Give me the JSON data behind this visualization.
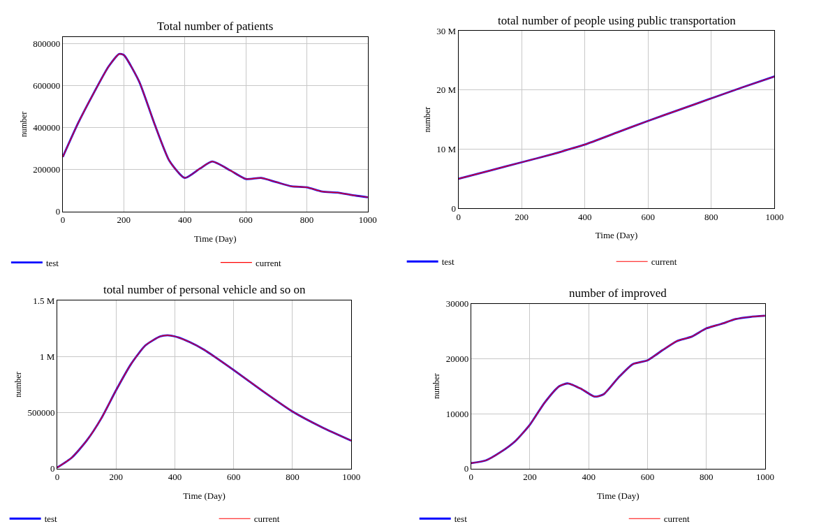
{
  "chart_data": [
    {
      "type": "line",
      "title": "Total number of patients",
      "xlabel": "Time (Day)",
      "ylabel": "number",
      "x": [
        0,
        50,
        100,
        150,
        185,
        200,
        250,
        300,
        350,
        400,
        450,
        490,
        550,
        600,
        650,
        700,
        750,
        800,
        850,
        900,
        950,
        1000
      ],
      "xlim": [
        0,
        1000
      ],
      "xticks": [
        0,
        200,
        400,
        600,
        800,
        1000
      ],
      "ylim": [
        0,
        830000
      ],
      "yticks": [
        0,
        200000,
        400000,
        600000,
        800000
      ],
      "grid": true,
      "legend": "bottom",
      "series": [
        {
          "name": "test",
          "color": "#0000ff",
          "values": [
            260000,
            420000,
            560000,
            690000,
            750000,
            745000,
            620000,
            420000,
            240000,
            160000,
            205000,
            238000,
            195000,
            155000,
            160000,
            140000,
            120000,
            115000,
            95000,
            90000,
            78000,
            68000
          ]
        },
        {
          "name": "current",
          "color": "#ff0000",
          "values": [
            260000,
            420000,
            560000,
            690000,
            750000,
            745000,
            620000,
            420000,
            240000,
            160000,
            205000,
            238000,
            195000,
            155000,
            160000,
            140000,
            120000,
            115000,
            95000,
            90000,
            78000,
            68000
          ]
        }
      ]
    },
    {
      "type": "line",
      "title": "total number of people using public transportation",
      "xlabel": "Time (Day)",
      "ylabel": "number",
      "x": [
        0,
        100,
        200,
        300,
        350,
        400,
        500,
        600,
        700,
        800,
        900,
        1000
      ],
      "xlim": [
        0,
        1000
      ],
      "xticks": [
        0,
        200,
        400,
        600,
        800,
        1000
      ],
      "ylim": [
        0,
        30000000
      ],
      "yticks": [
        0,
        {
          "value": 10000000,
          "label": "10 M"
        },
        {
          "value": 20000000,
          "label": "20 M"
        },
        {
          "value": 30000000,
          "label": "30 M"
        }
      ],
      "grid": true,
      "legend": "bottom",
      "series": [
        {
          "name": "test",
          "color": "#0000ff",
          "values": [
            5000000,
            6400000,
            7800000,
            9200000,
            10000000,
            10800000,
            12800000,
            14800000,
            16700000,
            18600000,
            20500000,
            22300000
          ]
        },
        {
          "name": "current",
          "color": "#ff0000",
          "values": [
            5000000,
            6400000,
            7800000,
            9200000,
            10000000,
            10800000,
            12800000,
            14800000,
            16700000,
            18600000,
            20500000,
            22300000
          ]
        }
      ]
    },
    {
      "type": "line",
      "title": "total number of personal vehicle and so on",
      "xlabel": "Time (Day)",
      "ylabel": "number",
      "x": [
        0,
        50,
        100,
        150,
        200,
        250,
        300,
        350,
        375,
        400,
        450,
        500,
        600,
        700,
        800,
        900,
        1000
      ],
      "xlim": [
        0,
        1000
      ],
      "xticks": [
        0,
        200,
        400,
        600,
        800,
        1000
      ],
      "ylim": [
        0,
        1500000
      ],
      "yticks": [
        0,
        500000,
        {
          "value": 1000000,
          "label": "1 M"
        },
        {
          "value": 1500000,
          "label": "1.5 M"
        }
      ],
      "grid": true,
      "legend": "bottom",
      "series": [
        {
          "name": "test",
          "color": "#0000ff",
          "values": [
            10000,
            100000,
            250000,
            450000,
            700000,
            930000,
            1100000,
            1180000,
            1190000,
            1180000,
            1130000,
            1060000,
            880000,
            690000,
            510000,
            370000,
            250000
          ]
        },
        {
          "name": "current",
          "color": "#ff0000",
          "values": [
            10000,
            100000,
            250000,
            450000,
            700000,
            930000,
            1100000,
            1180000,
            1190000,
            1180000,
            1130000,
            1060000,
            880000,
            690000,
            510000,
            370000,
            250000
          ]
        }
      ]
    },
    {
      "type": "line",
      "title": "number of improved",
      "xlabel": "Time (Day)",
      "ylabel": "number",
      "x": [
        0,
        50,
        100,
        150,
        200,
        250,
        300,
        330,
        375,
        420,
        450,
        500,
        550,
        600,
        650,
        700,
        750,
        800,
        850,
        900,
        950,
        1000
      ],
      "xlim": [
        0,
        1000
      ],
      "xticks": [
        0,
        200,
        400,
        600,
        800,
        1000
      ],
      "ylim": [
        0,
        30000
      ],
      "yticks": [
        0,
        10000,
        20000,
        30000
      ],
      "grid": true,
      "legend": "bottom",
      "series": [
        {
          "name": "test",
          "color": "#0000ff",
          "values": [
            1000,
            1500,
            3000,
            5000,
            8000,
            12000,
            15000,
            15500,
            14500,
            13100,
            13500,
            16500,
            19000,
            19700,
            21500,
            23200,
            24000,
            25500,
            26300,
            27200,
            27600,
            27800
          ]
        },
        {
          "name": "current",
          "color": "#ff0000",
          "values": [
            1000,
            1500,
            3000,
            5000,
            8000,
            12000,
            15000,
            15500,
            14500,
            13100,
            13500,
            16500,
            19000,
            19700,
            21500,
            23200,
            24000,
            25500,
            26300,
            27200,
            27600,
            27800
          ]
        }
      ]
    }
  ]
}
